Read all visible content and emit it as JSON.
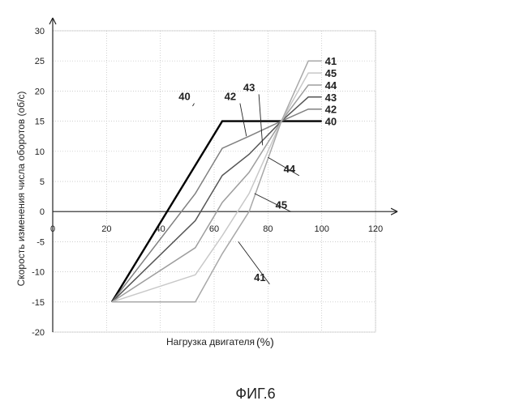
{
  "figure_caption": "ФИГ.6",
  "chart_data": {
    "type": "line",
    "xlabel": "Нагрузка двигателя",
    "xunit": "(%)",
    "ylabel": "Скорость изменения числа оборотов (об/с)",
    "xlim": [
      0,
      120
    ],
    "ylim": [
      -20,
      30
    ],
    "xticks": [
      "0",
      "20",
      "40",
      "60",
      "80",
      "100",
      "120"
    ],
    "yticks": [
      "-20",
      "-15",
      "-10",
      "-5",
      "0",
      "5",
      "10",
      "15",
      "20",
      "25",
      "30"
    ],
    "grid": "dotted",
    "series": [
      {
        "name": "40",
        "color": "#000000",
        "width": 2.4,
        "x": [
          22,
          63,
          100
        ],
        "y": [
          -15,
          15,
          15
        ]
      },
      {
        "name": "42",
        "color": "#808080",
        "width": 1.5,
        "x": [
          22,
          53,
          63,
          73,
          85,
          95,
          100
        ],
        "y": [
          -15,
          3,
          10.5,
          12.5,
          15,
          17,
          17
        ]
      },
      {
        "name": "43",
        "color": "#555555",
        "width": 1.5,
        "x": [
          22,
          53,
          63,
          73,
          85,
          95,
          100
        ],
        "y": [
          -15,
          -1.5,
          6,
          9.5,
          15,
          19,
          19
        ]
      },
      {
        "name": "44",
        "color": "#9e9e9e",
        "width": 1.5,
        "x": [
          22,
          53,
          63,
          73,
          85,
          95,
          100
        ],
        "y": [
          -15,
          -6,
          1.5,
          6.5,
          15,
          21,
          21
        ]
      },
      {
        "name": "45",
        "color": "#c8c8c8",
        "width": 1.5,
        "x": [
          22,
          53,
          63,
          73,
          85,
          95,
          100
        ],
        "y": [
          -15,
          -10.5,
          -4,
          3,
          15,
          23,
          23
        ]
      },
      {
        "name": "41",
        "color": "#a8a8a8",
        "width": 1.5,
        "x": [
          22,
          53,
          63,
          73,
          85,
          95,
          100
        ],
        "y": [
          -15,
          -15,
          -7,
          0,
          15,
          25,
          25
        ]
      }
    ],
    "annotations": [
      {
        "text": "40",
        "label_x": 49,
        "label_y": 18.5,
        "target_x": 52,
        "target_y": 17.5
      },
      {
        "text": "42",
        "label_x": 66,
        "label_y": 18.5,
        "target_x": 72,
        "target_y": 12.5
      },
      {
        "text": "43",
        "label_x": 73,
        "label_y": 20,
        "target_x": 78,
        "target_y": 11
      },
      {
        "text": "44",
        "label_x": 88,
        "label_y": 6.5,
        "target_x": 80,
        "target_y": 9
      },
      {
        "text": "45",
        "label_x": 85,
        "label_y": 0.5,
        "target_x": 75,
        "target_y": 3
      },
      {
        "text": "41",
        "label_x": 77,
        "label_y": -11.5,
        "target_x": 69,
        "target_y": -5
      }
    ],
    "right_labels": [
      {
        "text": "41",
        "y": 25
      },
      {
        "text": "45",
        "y": 23
      },
      {
        "text": "44",
        "y": 21
      },
      {
        "text": "43",
        "y": 19
      },
      {
        "text": "42",
        "y": 17
      },
      {
        "text": "40",
        "y": 15
      }
    ]
  }
}
